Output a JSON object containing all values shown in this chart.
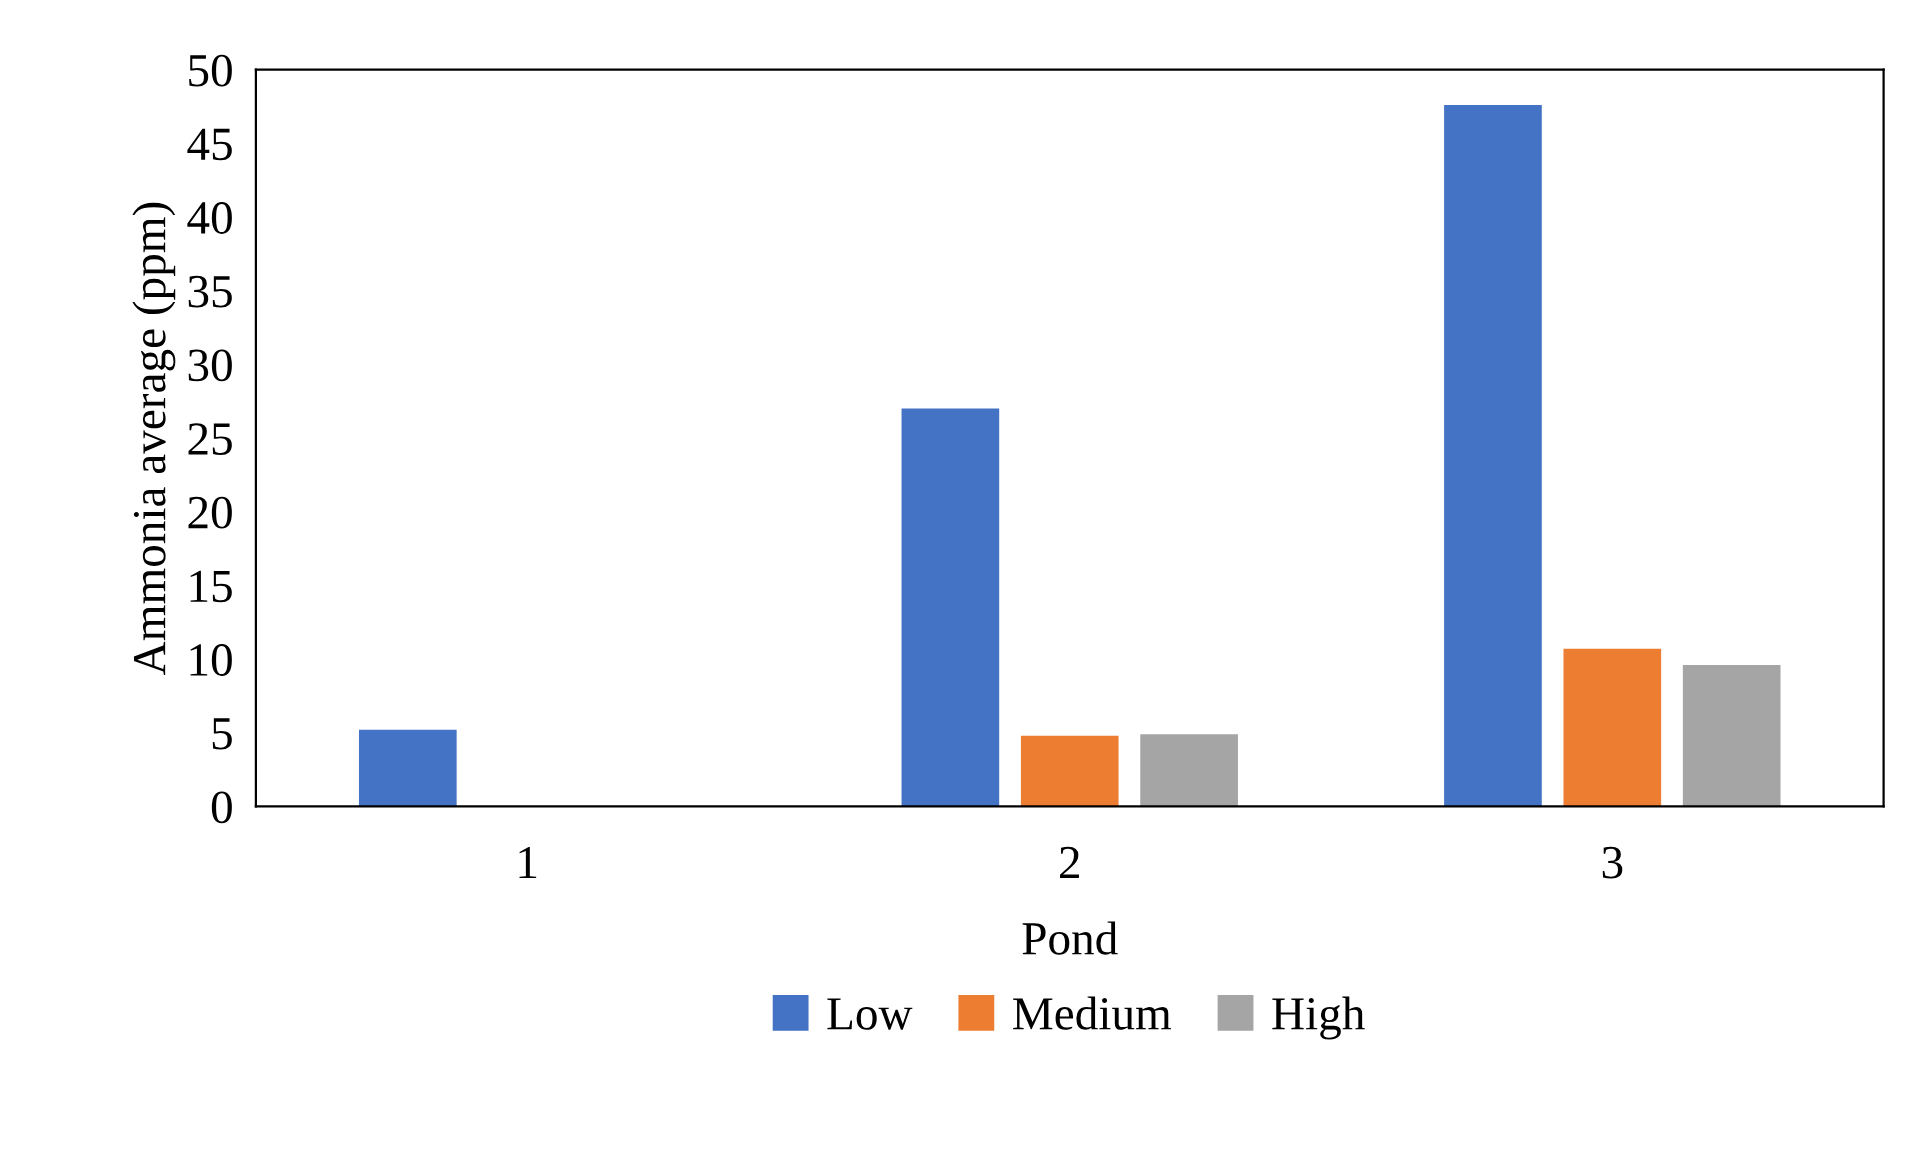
{
  "chart_data": {
    "type": "bar",
    "xlabel": "Pond",
    "ylabel": "Ammonia average (ppm)",
    "categories": [
      "1",
      "2",
      "3"
    ],
    "series": [
      {
        "name": "Low",
        "color": "#4472c4",
        "values": [
          5.2,
          27.0,
          47.6
        ]
      },
      {
        "name": "Medium",
        "color": "#ed7d31",
        "values": [
          0,
          4.8,
          10.7
        ]
      },
      {
        "name": "High",
        "color": "#a5a5a5",
        "values": [
          0,
          4.9,
          9.6
        ]
      }
    ],
    "ylim": [
      0,
      50
    ],
    "yticks": [
      0,
      5,
      10,
      15,
      20,
      25,
      30,
      35,
      40,
      45,
      50
    ],
    "grid": false,
    "legend": "bottom"
  }
}
